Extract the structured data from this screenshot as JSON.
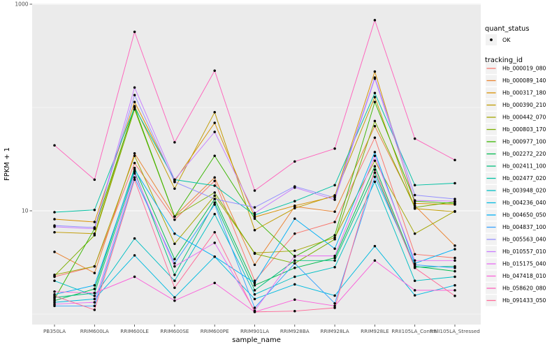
{
  "figure": {
    "background": "#FFFFFF",
    "panel_background": "#EBEBEB",
    "gridline_color": "#FFFFFF",
    "tick_color": "#333333",
    "tick_label_color": "#4D4D4D",
    "text_color": "#000000",
    "legend_key_background": "#F2F2F2",
    "point_color": "#000000"
  },
  "legend": {
    "quant_status_title": "quant_status",
    "quant_status_items": [
      {
        "label": "OK",
        "symbol": "point"
      }
    ],
    "tracking_id_title": "tracking_id"
  },
  "chart_data": {
    "type": "line",
    "title": "",
    "xlabel": "sample_name",
    "ylabel": "FPKM + 1",
    "x_categories": [
      "PB350LA",
      "RRIM600LA",
      "RRIM600LE",
      "RRIM600SE",
      "RRIM600PE",
      "RRIM901LA",
      "RRIM928BA",
      "RRIM928LA",
      "RRIM928LE",
      "RRII105LA_Control",
      "RRII105LA_Stressed"
    ],
    "y_scale": "log10",
    "y_tick_labels": [
      "1000",
      "10"
    ],
    "y_tick_values": [
      1000,
      10
    ],
    "y_minor_values": [
      100,
      1
    ],
    "ylim": [
      0.79,
      970
    ],
    "grid": true,
    "legend_position": "right",
    "marker": "black-point",
    "series": [
      {
        "name": "Hb_000019_080",
        "color": "#F8766D",
        "values": [
          2.3,
          2.9,
          29,
          8.2,
          19.5,
          2.1,
          6.0,
          7.8,
          51,
          3.8,
          3.5
        ]
      },
      {
        "name": "Hb_000089_140",
        "color": "#EA8331",
        "values": [
          4.0,
          2.5,
          36,
          8.8,
          21,
          3.0,
          11.0,
          9.8,
          66,
          11.2,
          4.6
        ]
      },
      {
        "name": "Hb_000317_180",
        "color": "#D89000",
        "values": [
          8.3,
          7.8,
          113,
          19.5,
          71,
          8.7,
          11.2,
          13.8,
          223,
          11.8,
          11.5
        ]
      },
      {
        "name": "Hb_000390_210",
        "color": "#C09B00",
        "values": [
          6.2,
          6.0,
          103,
          16.4,
          90,
          6.5,
          10.6,
          14.1,
          126,
          10.5,
          9.8
        ]
      },
      {
        "name": "Hb_000442_070",
        "color": "#A3A500",
        "values": [
          2.4,
          2.9,
          34,
          4.8,
          14,
          3.9,
          4.1,
          5.5,
          30.5,
          6.0,
          9.9
        ]
      },
      {
        "name": "Hb_000803_170",
        "color": "#7CAE00",
        "values": [
          2.35,
          5.8,
          96,
          8.8,
          15,
          3.85,
          3.1,
          5.3,
          74,
          10.8,
          12.2
        ]
      },
      {
        "name": "Hb_000977_100",
        "color": "#39B600",
        "values": [
          1.4,
          6.7,
          100,
          8.8,
          34,
          8.4,
          3.6,
          5.8,
          113,
          12.4,
          11.8
        ]
      },
      {
        "name": "Hb_002272_220",
        "color": "#00BB4E",
        "values": [
          1.35,
          1.75,
          26,
          3.4,
          13,
          1.9,
          2.8,
          3.5,
          27,
          2.9,
          2.6
        ]
      },
      {
        "name": "Hb_002411_100",
        "color": "#00BF7D",
        "values": [
          1.45,
          1.6,
          24,
          2.4,
          12,
          1.7,
          3.3,
          3.3,
          23.4,
          2.85,
          2.9
        ]
      },
      {
        "name": "Hb_002477_020",
        "color": "#00C1A3",
        "values": [
          9.7,
          10.2,
          100,
          20,
          17.5,
          9.1,
          12.4,
          17.7,
          138,
          17.7,
          18.5
        ]
      },
      {
        "name": "Hb_003948_020",
        "color": "#00BFC4",
        "values": [
          2.1,
          1.5,
          5.4,
          2.1,
          9.3,
          1.55,
          2.3,
          2.85,
          19.1,
          2.1,
          2.3
        ]
      },
      {
        "name": "Hb_004236_040",
        "color": "#00BAE0",
        "values": [
          1.3,
          1.4,
          3.7,
          1.45,
          3.6,
          1.4,
          1.94,
          1.51,
          4.55,
          1.52,
          1.9
        ]
      },
      {
        "name": "Hb_004650_050",
        "color": "#00B0F6",
        "values": [
          1.55,
          1.9,
          25,
          6.0,
          3.6,
          2.0,
          8.4,
          4.3,
          37,
          3.1,
          4.25
        ]
      },
      {
        "name": "Hb_004837_100",
        "color": "#35A2FF",
        "values": [
          1.2,
          1.2,
          21,
          3.1,
          11.5,
          1.15,
          3.1,
          1.27,
          21.3,
          3.0,
          2.8
        ]
      },
      {
        "name": "Hb_005563_040",
        "color": "#9590FF",
        "values": [
          7.2,
          6.9,
          132,
          19,
          13,
          10.8,
          17.2,
          13.4,
          195,
          14.2,
          13
        ]
      },
      {
        "name": "Hb_010557_010",
        "color": "#C77CFF",
        "values": [
          7.0,
          6.7,
          156,
          20,
          58,
          9.5,
          16.8,
          12.8,
          190,
          12.6,
          12.4
        ]
      },
      {
        "name": "Hb_015175_040",
        "color": "#E76BF3",
        "values": [
          1.25,
          1.3,
          23,
          2.9,
          4.9,
          1.08,
          3.66,
          3.66,
          34,
          3.3,
          3.3
        ]
      },
      {
        "name": "Hb_047418_010",
        "color": "#FA62DB",
        "values": [
          1.65,
          1.6,
          2.3,
          1.35,
          2.0,
          1.05,
          1.38,
          1.2,
          3.3,
          1.7,
          1.7
        ]
      },
      {
        "name": "Hb_058620_080",
        "color": "#FF62BC",
        "values": [
          43,
          20,
          540,
          46,
          227,
          15.7,
          30,
          40,
          700,
          50,
          31
        ]
      },
      {
        "name": "Hb_091433_050",
        "color": "#FF6A98",
        "values": [
          1.5,
          1.1,
          20,
          1.8,
          6.2,
          1.05,
          1.07,
          1.15,
          25,
          2.8,
          1.5
        ]
      }
    ]
  }
}
